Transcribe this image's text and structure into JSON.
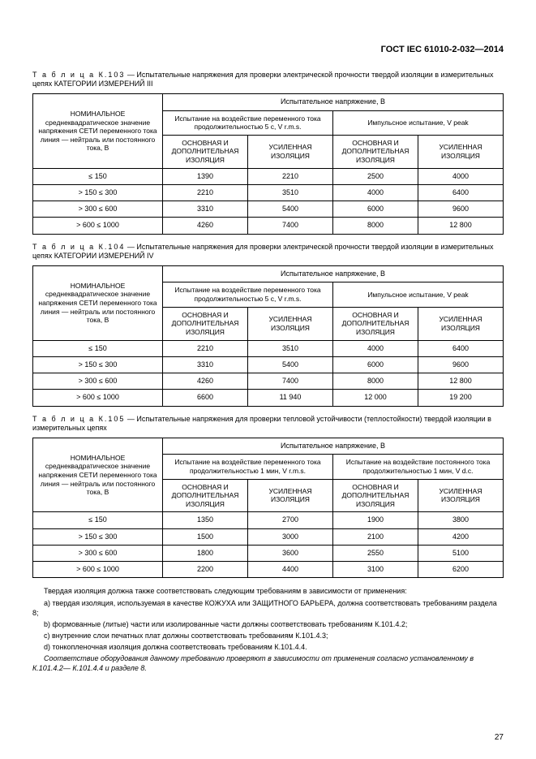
{
  "doc_header": "ГОСТ IEC 61010-2-032—2014",
  "page_number": "27",
  "common": {
    "left_header": "НОМИНАЛЬНОЕ среднеквадратическое значение напряжения СЕТИ переменного тока линия — нейтраль или постоянного тока, В",
    "top_header": "Испытательное напряжение, В",
    "ac_header_5s": "Испытание на воздействие переменного тока продолжительностью 5 с, V r.m.s.",
    "ac_header_1m": "Испытание на воздействие переменного тока продолжительностью 1 мин, V r.m.s.",
    "impulse_header": "Импульсное испытание, V peak",
    "dc_header_1m": "Испытание на воздействие постоянного тока продолжительностью 1 мин, V d.c.",
    "basic_supp": "ОСНОВНАЯ И ДОПОЛНИТЕЛЬНАЯ ИЗОЛЯЦИЯ",
    "reinforced": "УСИЛЕННАЯ ИЗОЛЯЦИЯ",
    "ranges": [
      "≤ 150",
      "> 150 ≤ 300",
      "> 300 ≤ 600",
      "> 600 ≤ 1000"
    ]
  },
  "table103": {
    "caption_pre": "Т а б л и ц а   К.103",
    "caption": " — Испытательные напряжения для проверки электрической прочности твердой изоляции в измерительных цепях КАТЕГОРИИ ИЗМЕРЕНИЙ III",
    "row0": {
      "a": "1390",
      "b": "2210",
      "c": "2500",
      "d": "4000"
    },
    "row1": {
      "a": "2210",
      "b": "3510",
      "c": "4000",
      "d": "6400"
    },
    "row2": {
      "a": "3310",
      "b": "5400",
      "c": "6000",
      "d": "9600"
    },
    "row3": {
      "a": "4260",
      "b": "7400",
      "c": "8000",
      "d": "12 800"
    }
  },
  "table104": {
    "caption_pre": "Т а б л и ц а   К.104",
    "caption": " — Испытательные напряжения для проверки электрической прочности твердой изоляции в измерительных цепях КАТЕГОРИИ ИЗМЕРЕНИЙ IV",
    "row0": {
      "a": "2210",
      "b": "3510",
      "c": "4000",
      "d": "6400"
    },
    "row1": {
      "a": "3310",
      "b": "5400",
      "c": "6000",
      "d": "9600"
    },
    "row2": {
      "a": "4260",
      "b": "7400",
      "c": "8000",
      "d": "12 800"
    },
    "row3": {
      "a": "6600",
      "b": "11 940",
      "c": "12 000",
      "d": "19 200"
    }
  },
  "table105": {
    "caption_pre": "Т а б л и ц а   К.105",
    "caption": " — Испытательные напряжения для проверки тепловой устойчивости (теплостойкости) твердой изоляции в измерительных цепях",
    "row0": {
      "a": "1350",
      "b": "2700",
      "c": "1900",
      "d": "3800"
    },
    "row1": {
      "a": "1500",
      "b": "3000",
      "c": "2100",
      "d": "4200"
    },
    "row2": {
      "a": "1800",
      "b": "3600",
      "c": "2550",
      "d": "5100"
    },
    "row3": {
      "a": "2200",
      "b": "4400",
      "c": "3100",
      "d": "6200"
    }
  },
  "body": {
    "p1": "Твердая изоляция должна также соответствовать следующим требованиям в зависимости от применения:",
    "p2": "a) твердая изоляция, используемая в качестве КОЖУХА или ЗАЩИТНОГО БАРЬЕРА, должна соответствовать требованиям раздела 8;",
    "p3": "b) формованные (литые) части или изолированные части должны соответствовать требованиям К.101.4.2;",
    "p4": "c) внутренние слои печатных плат должны соответствовать требованиям К.101.4.3;",
    "p5": "d) тонкопленочная изоляция должна соответствовать требованиям К.101.4.4.",
    "p6": "Соответствие оборудования данному требованию проверяют в зависимости от применения согласно установленному в К.101.4.2— К.101.4.4 и разделе 8."
  }
}
